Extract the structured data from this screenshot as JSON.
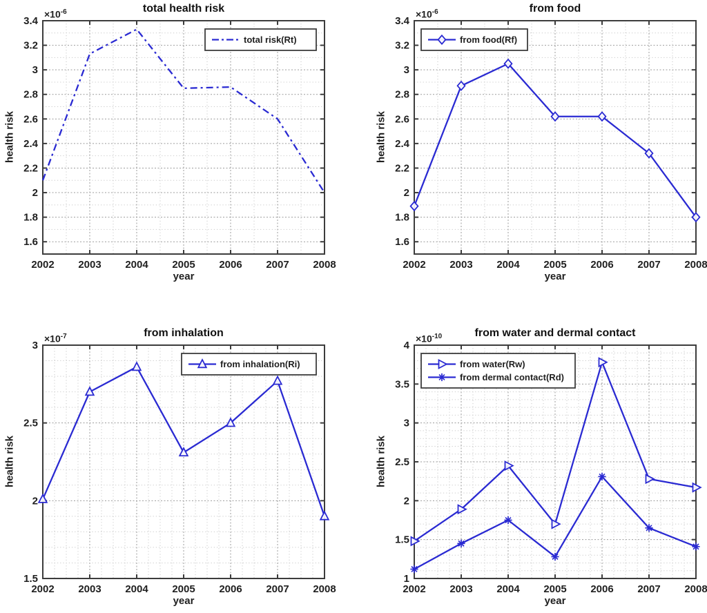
{
  "figure": {
    "background": "#ffffff",
    "line_color": "#2a2ad2",
    "axis_color": "#3c3c3c",
    "text_color": "#1f1f1f",
    "grid_major_color": "#9b9b9b",
    "grid_minor_color": "#c9c9c9"
  },
  "chart_data": [
    {
      "type": "line",
      "title": "total health risk",
      "xlabel": "year",
      "ylabel": "health risk",
      "exponent": {
        "mantissa": "×10",
        "power": "-6"
      },
      "x": [
        2002,
        2003,
        2004,
        2005,
        2006,
        2007,
        2008
      ],
      "xlim": [
        2002,
        2008
      ],
      "ylim": [
        1.5,
        3.4
      ],
      "yticks": [
        1.6,
        1.8,
        2,
        2.2,
        2.4,
        2.6,
        2.8,
        3,
        3.2,
        3.4
      ],
      "x_minor_step": 0.5,
      "y_minor_step": 0.1,
      "grid": true,
      "legend_position": "top-right",
      "series": [
        {
          "name": "total risk(Rt)",
          "marker": "none",
          "line_style": "dashdot",
          "values": [
            2.1,
            3.13,
            3.33,
            2.85,
            2.86,
            2.6,
            2.0
          ]
        }
      ]
    },
    {
      "type": "line",
      "title": "from food",
      "xlabel": "year",
      "ylabel": "health risk",
      "exponent": {
        "mantissa": "×10",
        "power": "-6"
      },
      "x": [
        2002,
        2003,
        2004,
        2005,
        2006,
        2007,
        2008
      ],
      "xlim": [
        2002,
        2008
      ],
      "ylim": [
        1.5,
        3.4
      ],
      "yticks": [
        1.6,
        1.8,
        2,
        2.2,
        2.4,
        2.6,
        2.8,
        3,
        3.2,
        3.4
      ],
      "x_minor_step": 0.5,
      "y_minor_step": 0.1,
      "grid": true,
      "legend_position": "top-left",
      "series": [
        {
          "name": "from food(Rf)",
          "marker": "diamond",
          "line_style": "solid",
          "values": [
            1.89,
            2.87,
            3.05,
            2.62,
            2.62,
            2.32,
            1.8
          ]
        }
      ]
    },
    {
      "type": "line",
      "title": "from inhalation",
      "xlabel": "year",
      "ylabel": "health risk",
      "exponent": {
        "mantissa": "×10",
        "power": "-7"
      },
      "x": [
        2002,
        2003,
        2004,
        2005,
        2006,
        2007,
        2008
      ],
      "xlim": [
        2002,
        2008
      ],
      "ylim": [
        1.5,
        3
      ],
      "yticks": [
        1.5,
        2,
        2.5,
        3
      ],
      "x_minor_step": 0.25,
      "y_minor_step": 0.1,
      "grid": true,
      "legend_position": "top-right",
      "series": [
        {
          "name": "from inhalation(Ri)",
          "marker": "triangle-up",
          "line_style": "solid",
          "values": [
            2.01,
            2.7,
            2.86,
            2.31,
            2.5,
            2.77,
            1.9
          ]
        }
      ]
    },
    {
      "type": "line",
      "title": "from water and dermal contact",
      "xlabel": "year",
      "ylabel": "health risk",
      "exponent": {
        "mantissa": "×10",
        "power": "-10"
      },
      "x": [
        2002,
        2003,
        2004,
        2005,
        2006,
        2007,
        2008
      ],
      "xlim": [
        2002,
        2008
      ],
      "ylim": [
        1,
        4
      ],
      "yticks": [
        1,
        1.5,
        2,
        2.5,
        3,
        3.5,
        4
      ],
      "x_minor_step": 0.25,
      "y_minor_step": 0.1,
      "grid": true,
      "legend_position": "top-left",
      "series": [
        {
          "name": "from water(Rw)",
          "marker": "triangle-right",
          "line_style": "solid",
          "values": [
            1.48,
            1.89,
            2.45,
            1.7,
            3.78,
            2.28,
            2.17
          ]
        },
        {
          "name": "from dermal contact(Rd)",
          "marker": "asterisk",
          "line_style": "solid",
          "values": [
            1.12,
            1.45,
            1.75,
            1.28,
            2.31,
            1.65,
            1.41
          ]
        }
      ]
    }
  ]
}
